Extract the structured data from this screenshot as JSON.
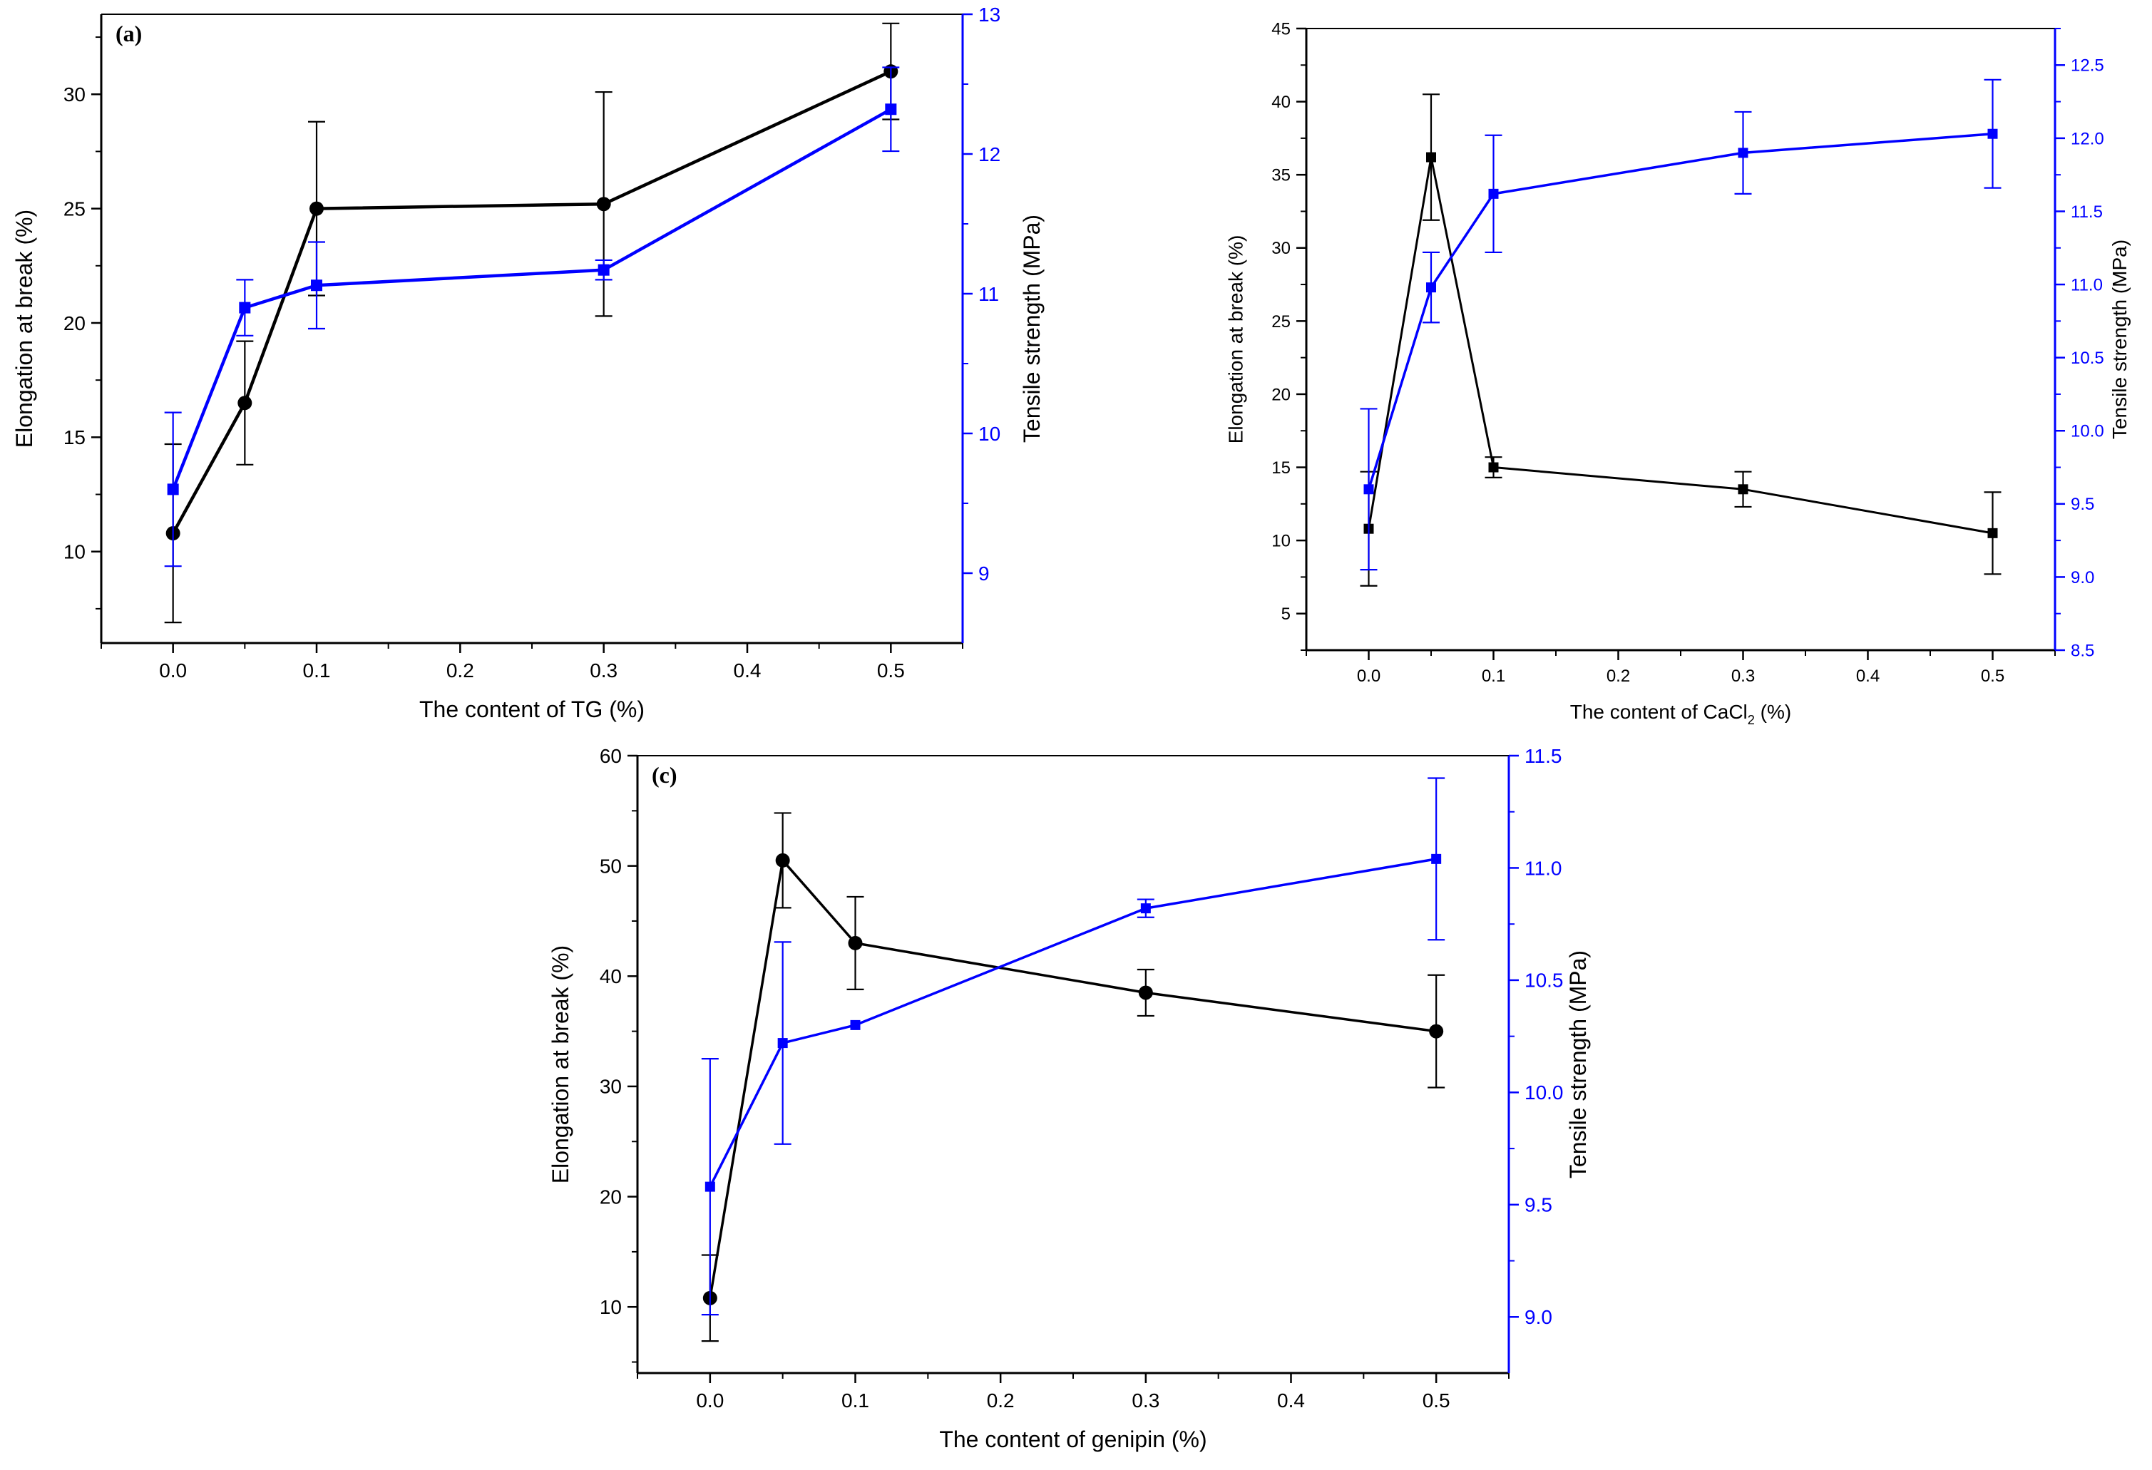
{
  "colors": {
    "left_axis": "#000000",
    "right_axis": "#0000ff"
  },
  "chart_data": [
    {
      "id": "a",
      "type": "line",
      "label": "(a)",
      "xlabel": "The content of TG (%)",
      "ylabel_left": "Elongation at break (%)",
      "ylabel_right": "Tensile strength (MPa)",
      "xlim": [
        -0.05,
        0.55
      ],
      "xticks": [
        "0.0",
        "0.1",
        "0.2",
        "0.3",
        "0.4",
        "0.5"
      ],
      "ylim_left": [
        6.0,
        33.5
      ],
      "yticks_left": [
        "10",
        "15",
        "20",
        "25",
        "30"
      ],
      "ylim_right": [
        8.5,
        13.0
      ],
      "yticks_right": [
        "9",
        "10",
        "11",
        "12",
        "13"
      ],
      "marker_left": "circle",
      "series": [
        {
          "name": "Elongation at break",
          "axis": "left",
          "x": [
            0.0,
            0.05,
            0.1,
            0.3,
            0.5
          ],
          "y": [
            10.8,
            16.5,
            25.0,
            25.2,
            31.0
          ],
          "err": [
            3.9,
            2.7,
            3.8,
            4.9,
            2.1
          ]
        },
        {
          "name": "Tensile strength",
          "axis": "right",
          "x": [
            0.0,
            0.05,
            0.1,
            0.3,
            0.5
          ],
          "y": [
            9.6,
            10.9,
            11.06,
            11.17,
            12.32
          ],
          "err": [
            0.55,
            0.2,
            0.31,
            0.07,
            0.3
          ]
        }
      ]
    },
    {
      "id": "b",
      "type": "line",
      "label": "",
      "xlabel_main": "The content of CaCl",
      "xlabel_sub": "2",
      "xlabel_tail": " (%)",
      "ylabel_left": "Elongation at break (%)",
      "ylabel_right": "Tensile strength (MPa)",
      "xlim": [
        -0.05,
        0.55
      ],
      "xticks": [
        "0.0",
        "0.1",
        "0.2",
        "0.3",
        "0.4",
        "0.5"
      ],
      "ylim_left": [
        2.5,
        45
      ],
      "yticks_left": [
        "5",
        "10",
        "15",
        "20",
        "25",
        "30",
        "35",
        "40",
        "45"
      ],
      "ylim_right": [
        8.5,
        12.75
      ],
      "yticks_right": [
        "8.5",
        "9.0",
        "9.5",
        "10.0",
        "10.5",
        "11.0",
        "11.5",
        "12.0",
        "12.5"
      ],
      "marker_left": "square",
      "series": [
        {
          "name": "Elongation at break",
          "axis": "left",
          "x": [
            0.0,
            0.05,
            0.1,
            0.3,
            0.5
          ],
          "y": [
            10.8,
            36.2,
            15.0,
            13.5,
            10.5
          ],
          "err": [
            3.9,
            4.3,
            0.7,
            1.2,
            2.8
          ]
        },
        {
          "name": "Tensile strength",
          "axis": "right",
          "x": [
            0.0,
            0.05,
            0.1,
            0.3,
            0.5
          ],
          "y": [
            9.6,
            10.98,
            11.62,
            11.9,
            12.03
          ],
          "err": [
            0.55,
            0.24,
            0.4,
            0.28,
            0.37
          ]
        }
      ]
    },
    {
      "id": "c",
      "type": "line",
      "label": "(c)",
      "xlabel": "The content of genipin (%)",
      "ylabel_left": "Elongation at break (%)",
      "ylabel_right": "Tensile strength (MPa)",
      "xlim": [
        -0.05,
        0.55
      ],
      "xticks": [
        "0.0",
        "0.1",
        "0.2",
        "0.3",
        "0.4",
        "0.5"
      ],
      "ylim_left": [
        4,
        60
      ],
      "yticks_left": [
        "10",
        "20",
        "30",
        "40",
        "50",
        "60"
      ],
      "ylim_right": [
        8.75,
        11.5
      ],
      "yticks_right": [
        "9.0",
        "9.5",
        "10.0",
        "10.5",
        "11.0",
        "11.5"
      ],
      "marker_left": "circle",
      "series": [
        {
          "name": "Elongation at break",
          "axis": "left",
          "x": [
            0.0,
            0.05,
            0.1,
            0.3,
            0.5
          ],
          "y": [
            10.8,
            50.5,
            43.0,
            38.5,
            35.0
          ],
          "err": [
            3.9,
            4.3,
            4.2,
            2.1,
            5.1
          ]
        },
        {
          "name": "Tensile strength",
          "axis": "right",
          "x": [
            0.0,
            0.05,
            0.1,
            0.3,
            0.5
          ],
          "y": [
            9.58,
            10.22,
            10.3,
            10.82,
            11.04
          ],
          "err": [
            0.57,
            0.45,
            0.0,
            0.04,
            0.36
          ]
        }
      ]
    }
  ]
}
